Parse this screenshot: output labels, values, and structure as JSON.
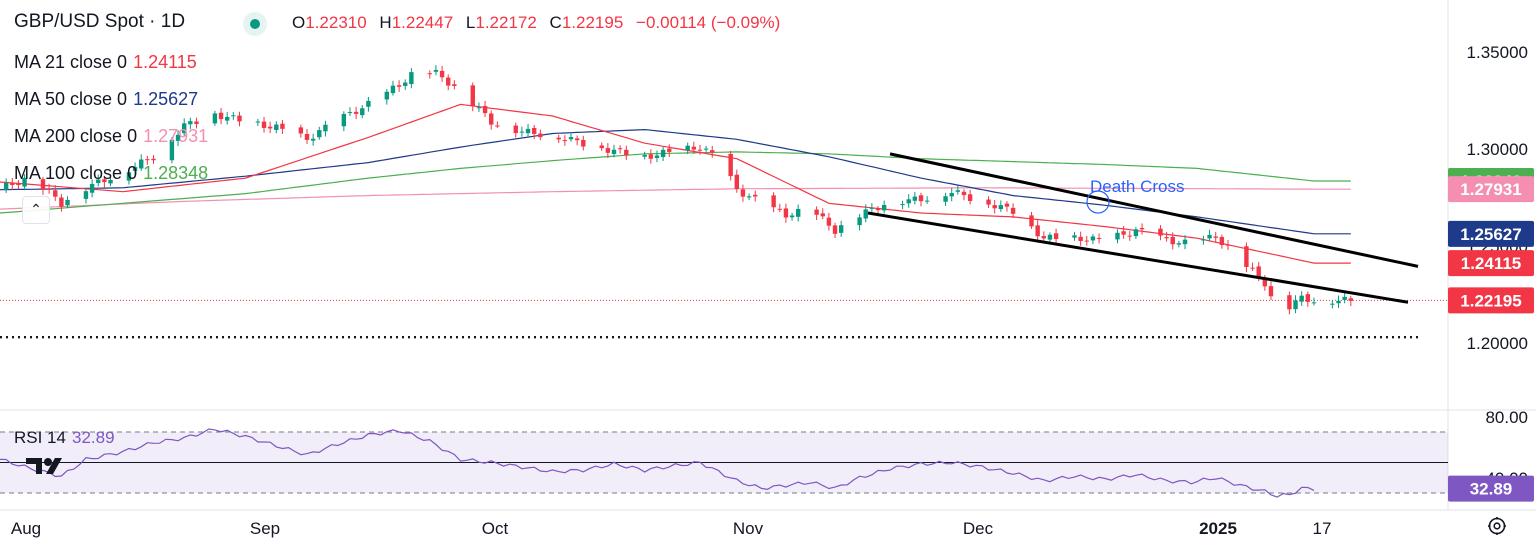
{
  "header": {
    "symbol_title": "GBP/USD Spot · 1D",
    "open_label": "O",
    "open_value": "1.22310",
    "high_label": "H",
    "high_value": "1.22447",
    "low_label": "L",
    "low_value": "1.22172",
    "close_label": "C",
    "close_value": "1.22195",
    "change": "−0.00114 (−0.09%)"
  },
  "legend": [
    {
      "label": "MA 21 close 0",
      "value": "1.24115",
      "color": "#f23645"
    },
    {
      "label": "MA 50 close 0",
      "value": "1.25627",
      "color": "#1e3a8a"
    },
    {
      "label": "MA 200 close 0",
      "value": "1.27931",
      "color": "#f48fb1"
    },
    {
      "label": "MA 100 close 0",
      "value": "1.28348",
      "color": "#4caf50"
    }
  ],
  "rsi": {
    "label": "RSI 14",
    "value": "32.89",
    "color": "#7e57c2"
  },
  "colors": {
    "up": "#089981",
    "down": "#f23645"
  },
  "annotation": "Death Cross",
  "chart_data": [
    {
      "type": "candlestick",
      "title": "GBP/USD Spot · 1D",
      "y_ticks": [
        "1.35000",
        "1.30000",
        "1.25000",
        "1.20000"
      ],
      "x_ticks": [
        "Aug",
        "Sep",
        "Oct",
        "Nov",
        "Dec",
        "2025",
        "17"
      ],
      "ylim": [
        1.19,
        1.365
      ],
      "price_labels": [
        {
          "text": "1.28348",
          "value": 1.28348,
          "color": "#4caf50"
        },
        {
          "text": "1.27931",
          "value": 1.27931,
          "color": "#f48fb1"
        },
        {
          "text": "1.25627",
          "value": 1.25627,
          "color": "#1e3a8a"
        },
        {
          "text": "1.24115",
          "value": 1.24115,
          "color": "#f23645"
        },
        {
          "text": "1.22195",
          "value": 1.22195,
          "color": "#f23645"
        }
      ],
      "current_price": 1.22195,
      "support_level": 1.203,
      "channel_upper": [
        [
          1.2975
        ],
        [
          1.2395
        ]
      ],
      "channel_lower": [
        [
          1.267
        ],
        [
          1.221
        ]
      ],
      "close_anchors": [
        [
          0,
          1.2795
        ],
        [
          5,
          1.2855
        ],
        [
          10,
          1.272
        ],
        [
          14,
          1.28
        ],
        [
          20,
          1.288
        ],
        [
          25,
          1.296
        ],
        [
          30,
          1.312
        ],
        [
          35,
          1.318
        ],
        [
          40,
          1.314
        ],
        [
          45,
          1.311
        ],
        [
          50,
          1.305
        ],
        [
          55,
          1.315
        ],
        [
          60,
          1.323
        ],
        [
          65,
          1.333
        ],
        [
          68,
          1.341
        ],
        [
          71,
          1.339
        ],
        [
          75,
          1.33
        ],
        [
          80,
          1.314
        ],
        [
          85,
          1.309
        ],
        [
          90,
          1.307
        ],
        [
          95,
          1.303
        ],
        [
          100,
          1.299
        ],
        [
          105,
          1.296
        ],
        [
          110,
          1.299
        ],
        [
          114,
          1.301
        ],
        [
          117,
          1.295
        ],
        [
          120,
          1.279
        ],
        [
          124,
          1.272
        ],
        [
          128,
          1.266
        ],
        [
          132,
          1.269
        ],
        [
          136,
          1.258
        ],
        [
          140,
          1.266
        ],
        [
          145,
          1.273
        ],
        [
          150,
          1.274
        ],
        [
          155,
          1.278
        ],
        [
          160,
          1.273
        ],
        [
          165,
          1.268
        ],
        [
          170,
          1.254
        ],
        [
          175,
          1.254
        ],
        [
          180,
          1.253
        ],
        [
          185,
          1.258
        ],
        [
          190,
          1.253
        ],
        [
          194,
          1.251
        ],
        [
          198,
          1.255
        ],
        [
          202,
          1.243
        ],
        [
          206,
          1.231
        ],
        [
          208,
          1.217
        ],
        [
          210,
          1.219
        ],
        [
          212,
          1.223
        ],
        [
          214,
          1.222
        ]
      ],
      "ma21": [
        [
          0,
          1.283
        ],
        [
          20,
          1.278
        ],
        [
          40,
          1.285
        ],
        [
          60,
          1.306
        ],
        [
          75,
          1.323
        ],
        [
          90,
          1.317
        ],
        [
          105,
          1.303
        ],
        [
          120,
          1.295
        ],
        [
          135,
          1.272
        ],
        [
          150,
          1.267
        ],
        [
          165,
          1.265
        ],
        [
          180,
          1.26
        ],
        [
          195,
          1.254
        ],
        [
          214,
          1.2412
        ]
      ],
      "ma50": [
        [
          0,
          1.279
        ],
        [
          20,
          1.28
        ],
        [
          40,
          1.286
        ],
        [
          60,
          1.293
        ],
        [
          75,
          1.301
        ],
        [
          90,
          1.308
        ],
        [
          105,
          1.31
        ],
        [
          120,
          1.305
        ],
        [
          135,
          1.296
        ],
        [
          150,
          1.285
        ],
        [
          165,
          1.276
        ],
        [
          180,
          1.271
        ],
        [
          195,
          1.265
        ],
        [
          214,
          1.2563
        ]
      ],
      "ma100": [
        [
          0,
          1.267
        ],
        [
          20,
          1.272
        ],
        [
          40,
          1.277
        ],
        [
          60,
          1.285
        ],
        [
          75,
          1.29
        ],
        [
          90,
          1.294
        ],
        [
          105,
          1.2975
        ],
        [
          120,
          1.2985
        ],
        [
          135,
          1.2975
        ],
        [
          150,
          1.295
        ],
        [
          165,
          1.2935
        ],
        [
          180,
          1.292
        ],
        [
          195,
          1.29
        ],
        [
          214,
          1.2835
        ]
      ],
      "ma200": [
        [
          0,
          1.269
        ],
        [
          30,
          1.273
        ],
        [
          60,
          1.276
        ],
        [
          90,
          1.278
        ],
        [
          120,
          1.2795
        ],
        [
          160,
          1.28
        ],
        [
          214,
          1.2793
        ]
      ]
    },
    {
      "type": "line",
      "title": "RSI 14",
      "y_ticks": [
        "80.00",
        "40.00"
      ],
      "levels": [
        70,
        50,
        30
      ],
      "ylim": [
        26,
        82
      ],
      "current_value": 32.89,
      "values_anchors": [
        [
          0,
          52
        ],
        [
          5,
          46
        ],
        [
          10,
          41
        ],
        [
          14,
          52
        ],
        [
          20,
          57
        ],
        [
          25,
          63
        ],
        [
          30,
          66
        ],
        [
          35,
          72
        ],
        [
          40,
          67
        ],
        [
          45,
          61
        ],
        [
          50,
          55
        ],
        [
          55,
          62
        ],
        [
          60,
          68
        ],
        [
          65,
          71
        ],
        [
          70,
          64
        ],
        [
          75,
          52
        ],
        [
          80,
          50
        ],
        [
          85,
          47
        ],
        [
          90,
          44
        ],
        [
          95,
          45
        ],
        [
          100,
          49
        ],
        [
          105,
          45
        ],
        [
          110,
          48
        ],
        [
          114,
          50
        ],
        [
          117,
          44
        ],
        [
          120,
          38
        ],
        [
          124,
          33
        ],
        [
          128,
          35
        ],
        [
          132,
          37
        ],
        [
          136,
          33
        ],
        [
          140,
          40
        ],
        [
          145,
          46
        ],
        [
          150,
          49
        ],
        [
          155,
          50
        ],
        [
          160,
          47
        ],
        [
          165,
          43
        ],
        [
          170,
          38
        ],
        [
          175,
          41
        ],
        [
          180,
          39
        ],
        [
          185,
          42
        ],
        [
          190,
          38
        ],
        [
          194,
          37
        ],
        [
          198,
          40
        ],
        [
          202,
          35
        ],
        [
          206,
          31
        ],
        [
          208,
          28
        ],
        [
          210,
          29
        ],
        [
          212,
          33
        ],
        [
          214,
          32.89
        ]
      ]
    }
  ]
}
